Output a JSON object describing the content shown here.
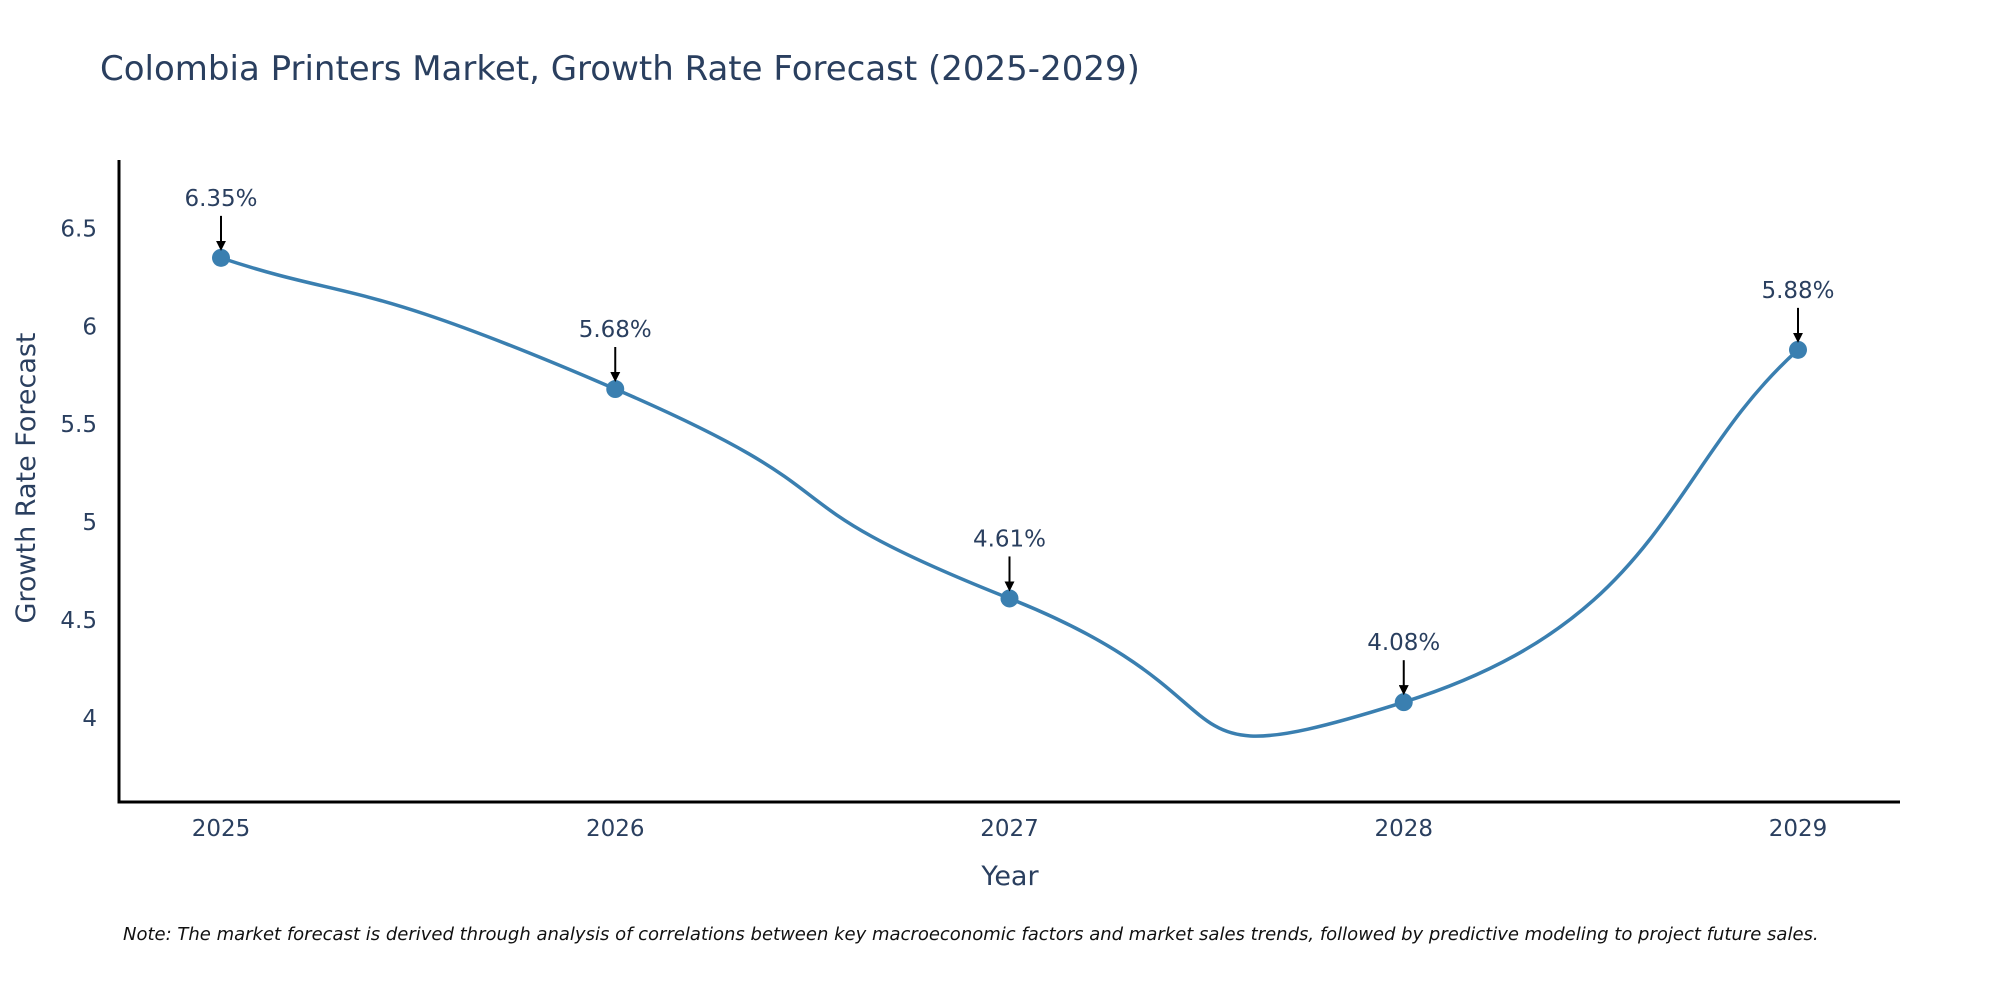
{
  "colors": {
    "line": "#3a7fb0",
    "marker": "#3a7fb0",
    "axis": "#000000",
    "text": "#2a3f5f",
    "arrow": "#000000"
  },
  "chart_data": {
    "type": "line",
    "title": "Colombia Printers Market, Growth Rate Forecast (2025-2029)",
    "xlabel": "Year",
    "ylabel": "Growth Rate Forecast",
    "categories": [
      "2025",
      "2026",
      "2027",
      "2028",
      "2029"
    ],
    "series": [
      {
        "name": "Growth Rate Forecast",
        "values": [
          6.35,
          5.68,
          4.61,
          4.08,
          5.88
        ],
        "labels": [
          "6.35%",
          "5.68%",
          "4.61%",
          "4.08%",
          "5.88%"
        ]
      }
    ],
    "yticks": [
      4,
      4.5,
      5,
      5.5,
      6,
      6.5
    ],
    "ytick_labels": [
      "4",
      "4.5",
      "5",
      "5.5",
      "6",
      "6.5"
    ],
    "ylim": [
      3.57,
      6.85
    ],
    "grid": false,
    "line_shape": "spline"
  },
  "note": "Note: The market forecast is derived through analysis of correlations between key macroeconomic factors and market sales trends, followed by predictive modeling to project future sales."
}
